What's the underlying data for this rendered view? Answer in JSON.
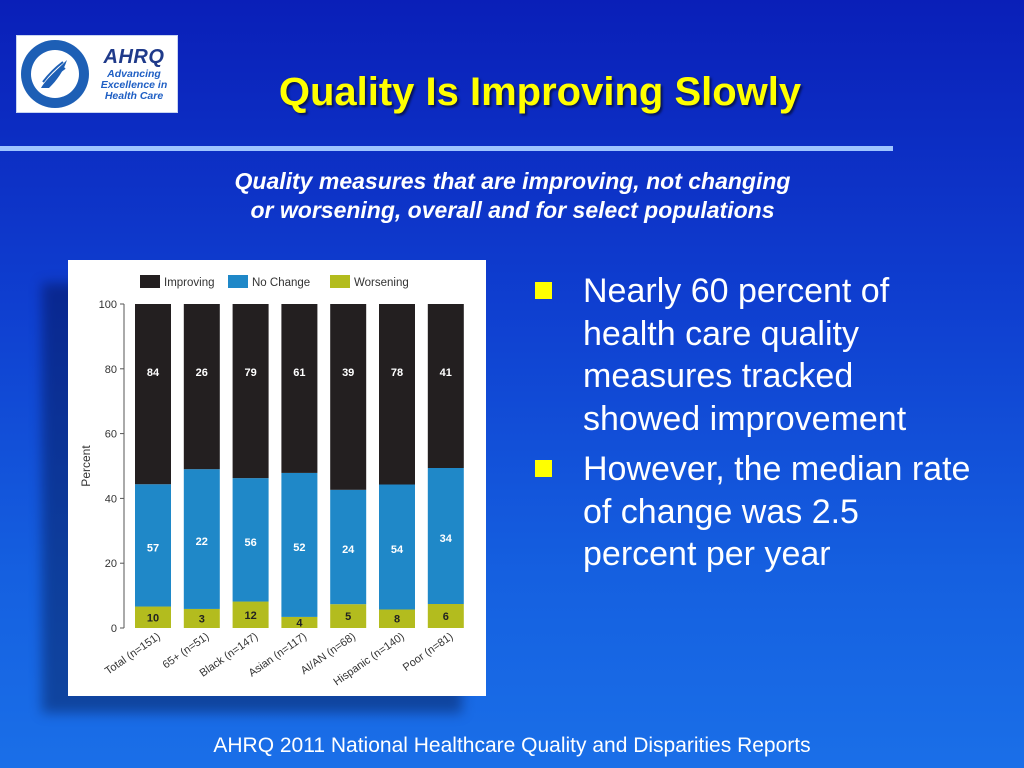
{
  "logo": {
    "hhs_seal_text": "DEPARTMENT OF HEALTH & HUMAN SERVICES · USA",
    "ahrq_word": "AHRQ",
    "ahrq_tagline": [
      "Advancing",
      "Excellence in",
      "Health Care"
    ]
  },
  "slide": {
    "title": "Quality Is Improving Slowly",
    "subtitle_line1": "Quality measures that are improving, not changing",
    "subtitle_line2": "or worsening, overall and for select populations",
    "bullets": [
      "Nearly 60 percent of health care quality measures tracked showed improvement",
      "However, the median rate of change was 2.5 percent per year"
    ],
    "footer": "AHRQ 2011 National Healthcare Quality and Disparities Reports"
  },
  "colors": {
    "improving": "#231f20",
    "no_change": "#1f88c8",
    "worsening": "#b3bc1e",
    "title": "#ffff00",
    "bullet_marker": "#ffff00"
  },
  "chart_data": {
    "type": "bar",
    "stacked": true,
    "normalized_percent": true,
    "categories": [
      "Total (n=151)",
      "65+ (n=51)",
      "Black (n=147)",
      "Asian (n=117)",
      "AI/AN (n=68)",
      "Hispanic (n=140)",
      "Poor (n=81)"
    ],
    "series": [
      {
        "name": "Worsening",
        "counts": [
          10,
          3,
          12,
          4,
          5,
          8,
          6
        ],
        "color": "#b3bc1e"
      },
      {
        "name": "No Change",
        "counts": [
          57,
          22,
          56,
          52,
          24,
          54,
          34
        ],
        "color": "#1f88c8"
      },
      {
        "name": "Improving",
        "counts": [
          84,
          26,
          79,
          61,
          39,
          78,
          41
        ],
        "color": "#231f20"
      }
    ],
    "legend": [
      "Improving",
      "No Change",
      "Worsening"
    ],
    "legend_position": "top",
    "ylabel": "Percent",
    "ylim": [
      0,
      100
    ],
    "yticks": [
      0,
      20,
      40,
      60,
      80,
      100
    ]
  }
}
